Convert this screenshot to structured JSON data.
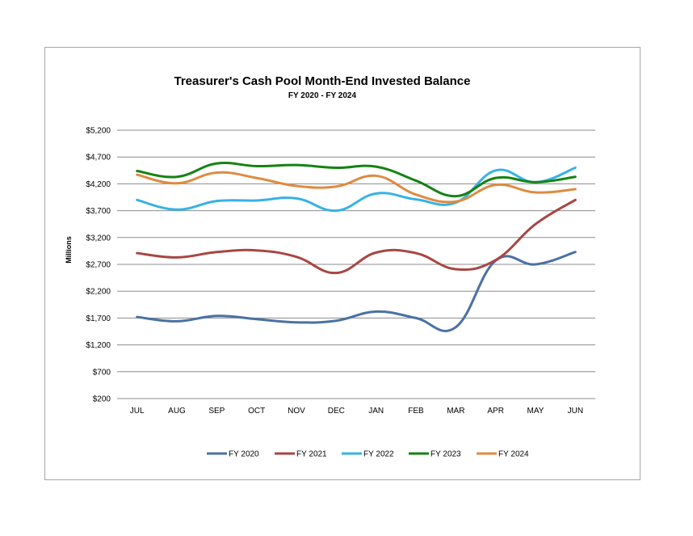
{
  "chart_data": {
    "type": "line",
    "title": "Treasurer's Cash Pool Month-End Invested Balance",
    "subtitle": "FY 2020 - FY 2024",
    "ylabel": "Millions",
    "xlabel": "",
    "categories": [
      "JUL",
      "AUG",
      "SEP",
      "OCT",
      "NOV",
      "DEC",
      "JAN",
      "FEB",
      "MAR",
      "APR",
      "MAY",
      "JUN"
    ],
    "ylim": [
      200,
      5200
    ],
    "yticks": [
      200,
      700,
      1200,
      1700,
      2200,
      2700,
      3200,
      3700,
      4200,
      4700,
      5200
    ],
    "ytick_labels": [
      "$200",
      "$700",
      "$1,200",
      "$1,700",
      "$2,200",
      "$2,700",
      "$3,200",
      "$3,700",
      "$4,200",
      "$4,700",
      "$5,200"
    ],
    "grid": true,
    "legend_position": "bottom",
    "series": [
      {
        "name": "FY 2020",
        "color": "#4a71a3",
        "values": [
          1720,
          1640,
          1740,
          1680,
          1620,
          1650,
          1820,
          1700,
          1530,
          2770,
          2700,
          2930
        ]
      },
      {
        "name": "FY 2021",
        "color": "#a84643",
        "values": [
          2910,
          2830,
          2930,
          2960,
          2840,
          2540,
          2920,
          2910,
          2610,
          2780,
          3450,
          3900
        ]
      },
      {
        "name": "FY 2022",
        "color": "#36b2e6",
        "values": [
          3900,
          3720,
          3880,
          3890,
          3930,
          3700,
          4020,
          3910,
          3850,
          4450,
          4230,
          4500
        ]
      },
      {
        "name": "FY 2023",
        "color": "#158213",
        "values": [
          4440,
          4330,
          4580,
          4530,
          4550,
          4500,
          4520,
          4260,
          3970,
          4310,
          4230,
          4330
        ]
      },
      {
        "name": "FY 2024",
        "color": "#de8b41",
        "values": [
          4370,
          4210,
          4410,
          4310,
          4160,
          4150,
          4350,
          4000,
          3870,
          4180,
          4040,
          4100
        ]
      }
    ]
  }
}
